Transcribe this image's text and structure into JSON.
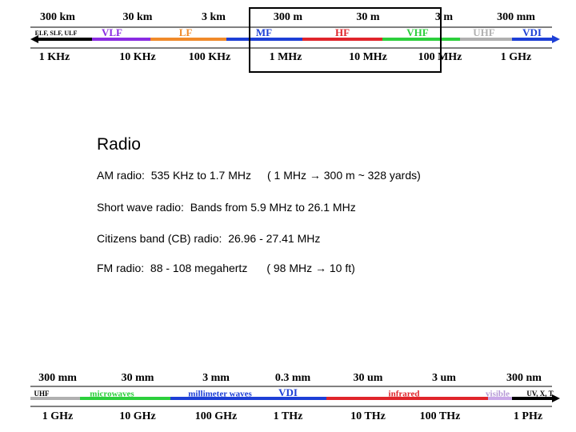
{
  "top_spectrum": {
    "wavelengths": [
      "300 km",
      "30 km",
      "3 km",
      "300 m",
      "30 m",
      "3 m",
      "300 mm"
    ],
    "bands": [
      "ELF, SLF, ULF",
      "VLF",
      "LF",
      "MF",
      "HF",
      "VHF",
      "UHF",
      "VDI"
    ],
    "frequencies": [
      "1 KHz",
      "10 KHz",
      "100 KHz",
      "1 MHz",
      "10 MHz",
      "100 MHz",
      "1 GHz"
    ]
  },
  "body": {
    "title": "Radio",
    "items": [
      {
        "label": "AM radio:",
        "text": "535 KHz to 1.7 MHz",
        "note": "( 1 MHz → 300 m ~ 328 yards)"
      },
      {
        "label": "Short wave radio:",
        "text": "Bands from 5.9 MHz to 26.1 MHz"
      },
      {
        "label": "Citizens band (CB) radio:",
        "text": "26.96 - 27.41 MHz"
      },
      {
        "label": "FM radio:",
        "text": "88 - 108 megahertz",
        "note": "( 98 MHz → 10 ft)"
      }
    ]
  },
  "bottom_spectrum": {
    "wavelengths": [
      "300 mm",
      "30 mm",
      "3 mm",
      "0.3 mm",
      "30 um",
      "3 um",
      "300 nm"
    ],
    "bands": [
      "UHF",
      "microwaves",
      "millimeter waves",
      "VDI",
      "infrared",
      "visible",
      "UV, X, T"
    ],
    "frequencies": [
      "1 GHz",
      "10 GHz",
      "100 GHz",
      "1 THz",
      "10 THz",
      "100 THz",
      "1 PHz"
    ]
  }
}
